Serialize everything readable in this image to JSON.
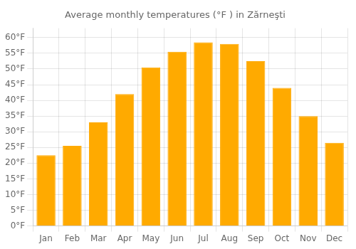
{
  "chart_data": {
    "type": "bar",
    "title": "Average monthly temperatures (°F ) in Zărneşti",
    "categories": [
      "Jan",
      "Feb",
      "Mar",
      "Apr",
      "May",
      "Jun",
      "Jul",
      "Aug",
      "Sep",
      "Oct",
      "Nov",
      "Dec"
    ],
    "values": [
      22.5,
      25.5,
      33.0,
      42.0,
      50.5,
      55.5,
      58.5,
      58.0,
      52.5,
      44.0,
      35.0,
      26.5
    ],
    "color": "#FFAA00",
    "ylim": [
      0,
      63
    ],
    "yticks": [
      {
        "value": 0,
        "label": "0°F"
      },
      {
        "value": 5,
        "label": "5°F"
      },
      {
        "value": 10,
        "label": "10°F"
      },
      {
        "value": 15,
        "label": "15°F"
      },
      {
        "value": 20,
        "label": "20°F"
      },
      {
        "value": 25,
        "label": "25°F"
      },
      {
        "value": 30,
        "label": "30°F"
      },
      {
        "value": 35,
        "label": "35°F"
      },
      {
        "value": 40,
        "label": "40°F"
      },
      {
        "value": 45,
        "label": "45°F"
      },
      {
        "value": 50,
        "label": "50°F"
      },
      {
        "value": 55,
        "label": "55°F"
      },
      {
        "value": 60,
        "label": "60°F"
      }
    ],
    "grid": true
  }
}
